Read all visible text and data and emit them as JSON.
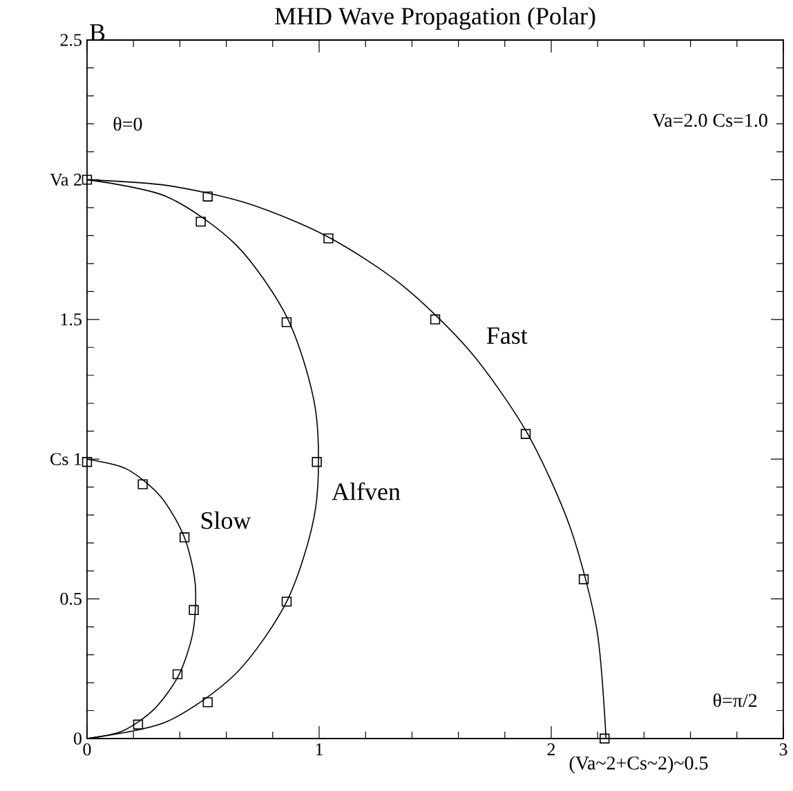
{
  "chart_data": {
    "type": "line",
    "title": "MHD Wave Propagation (Polar)",
    "ylabel": "B",
    "xlim": [
      0,
      3
    ],
    "ylim": [
      0,
      2.5
    ],
    "xticks": [
      0,
      1,
      2,
      3
    ],
    "yticks": [
      0,
      0.5,
      {
        "value": 1,
        "label": "Cs 1"
      },
      1.5,
      {
        "value": 2,
        "label": "Va 2"
      },
      2.5
    ],
    "annotations": [
      "θ=0",
      "Va=2.0  Cs=1.0",
      "θ=π/2",
      "(Va~2+Cs~2)~0.5"
    ],
    "series": [
      {
        "name": "Fast",
        "color": "#000000",
        "x": [
          0,
          0.349,
          0.697,
          1.037,
          1.36,
          1.651,
          1.896,
          2.081,
          2.197,
          2.236
        ],
        "values": [
          2,
          1.979,
          1.914,
          1.796,
          1.621,
          1.385,
          1.094,
          0.757,
          0.387,
          0
        ]
      },
      {
        "name": "Alfven",
        "color": "#000000",
        "x": [
          0,
          0.342,
          0.643,
          0.866,
          0.985,
          0.985,
          0.866,
          0.643,
          0.342,
          0
        ],
        "values": [
          2,
          1.94,
          1.766,
          1.5,
          1.174,
          0.826,
          0.5,
          0.234,
          0.06,
          0
        ]
      },
      {
        "name": "Slow",
        "color": "#000000",
        "x": [
          0,
          0.17,
          0.316,
          0.418,
          0.466,
          0.457,
          0.396,
          0.29,
          0.153,
          0
        ],
        "values": [
          1,
          0.965,
          0.867,
          0.723,
          0.555,
          0.384,
          0.228,
          0.106,
          0.027,
          0
        ]
      },
      {
        "type": "scatter",
        "marker": "square",
        "color": "#000000",
        "x": [
          0.52,
          1.04,
          1.5,
          1.89,
          2.14,
          2.23
        ],
        "values": [
          1.94,
          1.79,
          1.5,
          1.09,
          0.57,
          0
        ]
      },
      {
        "type": "scatter",
        "marker": "square",
        "color": "#000000",
        "x": [
          0,
          0.49,
          0.86,
          0.99,
          0.86,
          0.52
        ],
        "values": [
          2,
          1.85,
          1.49,
          0.99,
          0.49,
          0.13
        ]
      },
      {
        "type": "scatter",
        "marker": "square",
        "color": "#000000",
        "x": [
          0,
          0.24,
          0.42,
          0.46,
          0.39,
          0.22
        ],
        "values": [
          0.99,
          0.91,
          0.72,
          0.46,
          0.23,
          0.05
        ]
      }
    ]
  }
}
